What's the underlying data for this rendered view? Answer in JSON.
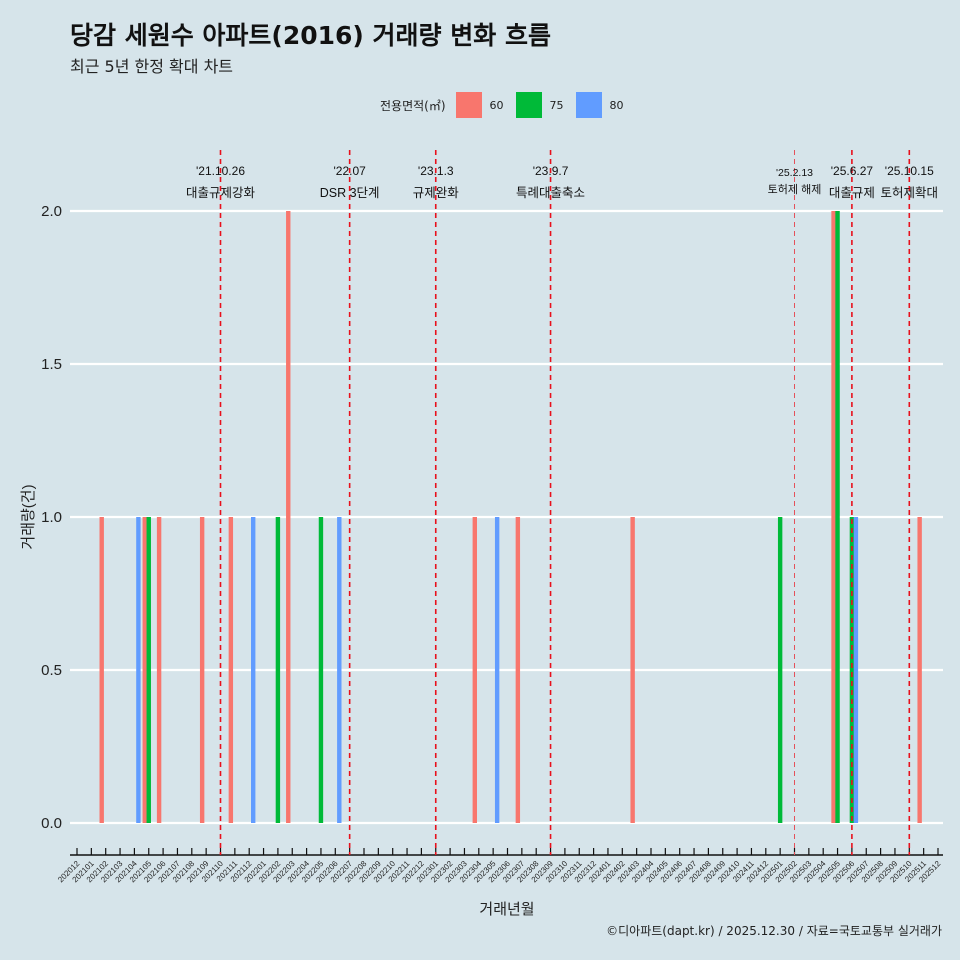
{
  "title": "당감 세원수 아파트(2016) 거래량 변화 흐름",
  "subtitle": "최근 5년 한정 확대 차트",
  "caption": "©디아파트(dapt.kr) / 2025.12.30 / 자료=국토교통부 실거래가",
  "legend": {
    "title": "전용면적(㎡)",
    "items": [
      {
        "label": "60",
        "color": "#F8766D"
      },
      {
        "label": "75",
        "color": "#00BA38"
      },
      {
        "label": "80",
        "color": "#619CFF"
      }
    ]
  },
  "chart_data": {
    "type": "bar",
    "xlabel": "거래년월",
    "ylabel": "거래량(건)",
    "ylim": [
      0,
      2
    ],
    "yticks": [
      "0.0",
      "0.5",
      "1.0",
      "1.5",
      "2.0"
    ],
    "grid": "horizontal",
    "legend_position": "top",
    "categories": [
      "202012",
      "202101",
      "202102",
      "202103",
      "202104",
      "202105",
      "202106",
      "202107",
      "202108",
      "202109",
      "202110",
      "202111",
      "202112",
      "202201",
      "202202",
      "202203",
      "202204",
      "202205",
      "202206",
      "202207",
      "202208",
      "202209",
      "202210",
      "202211",
      "202212",
      "202301",
      "202302",
      "202303",
      "202304",
      "202305",
      "202306",
      "202307",
      "202308",
      "202309",
      "202310",
      "202311",
      "202312",
      "202401",
      "202402",
      "202403",
      "202404",
      "202405",
      "202406",
      "202407",
      "202408",
      "202409",
      "202410",
      "202411",
      "202412",
      "202501",
      "202502",
      "202503",
      "202504",
      "202505",
      "202506",
      "202507",
      "202508",
      "202509",
      "202510",
      "202511",
      "202512"
    ],
    "series": [
      {
        "name": "60",
        "points": [
          [
            "202102",
            1
          ],
          [
            "202105",
            1
          ],
          [
            "202106",
            1
          ],
          [
            "202109",
            1
          ],
          [
            "202111",
            1
          ],
          [
            "202203",
            2
          ],
          [
            "202304",
            1
          ],
          [
            "202307",
            1
          ],
          [
            "202403",
            1
          ],
          [
            "202505",
            2
          ],
          [
            "202511",
            1
          ]
        ]
      },
      {
        "name": "75",
        "points": [
          [
            "202105",
            1
          ],
          [
            "202202",
            1
          ],
          [
            "202205",
            1
          ],
          [
            "202501",
            1
          ],
          [
            "202505",
            2
          ],
          [
            "202506",
            1
          ]
        ]
      },
      {
        "name": "80",
        "points": [
          [
            "202104",
            1
          ],
          [
            "202112",
            1
          ],
          [
            "202206",
            1
          ],
          [
            "202305",
            1
          ],
          [
            "202506",
            1
          ]
        ]
      }
    ],
    "annotations": [
      {
        "month": "202110",
        "date": "'21.10.26",
        "label": "대출규제강화"
      },
      {
        "month": "202207",
        "date": "'22.07",
        "label": "DSR 3단계"
      },
      {
        "month": "202301",
        "date": "'23.1.3",
        "label": "규제완화"
      },
      {
        "month": "202309",
        "date": "'23.9.7",
        "label": "특례대출축소"
      },
      {
        "month": "202502",
        "date": "'25.2.13",
        "label": "토허제 해제",
        "minor": true
      },
      {
        "month": "202506",
        "date": "'25.6.27",
        "label": "대출규제"
      },
      {
        "month": "202510",
        "date": "'25.10.15",
        "label": "토허제확대"
      }
    ]
  }
}
